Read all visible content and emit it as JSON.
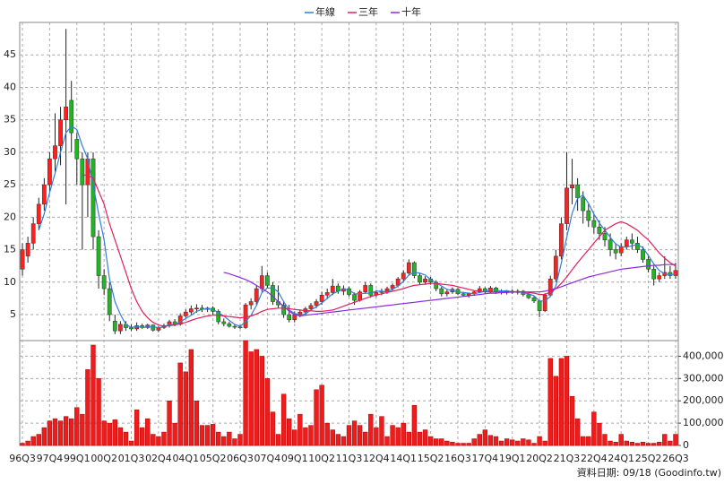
{
  "chart_data": [
    {
      "type": "candlestick",
      "legend": "top",
      "grid": true,
      "up_color": "#ff2020",
      "down_color": "#22b422",
      "ylim": [
        1,
        50
      ],
      "yticks": [
        5,
        10,
        15,
        20,
        25,
        30,
        35,
        40,
        45
      ],
      "categories": [
        "96Q3",
        null,
        null,
        null,
        null,
        "97Q4",
        null,
        null,
        null,
        null,
        "99Q1",
        null,
        null,
        null,
        null,
        "00Q2",
        null,
        null,
        null,
        null,
        "01Q3",
        null,
        null,
        null,
        null,
        "02Q4",
        null,
        null,
        null,
        null,
        "04Q1",
        null,
        null,
        null,
        null,
        "05Q2",
        null,
        null,
        null,
        null,
        "06Q3",
        null,
        null,
        null,
        null,
        "07Q4",
        null,
        null,
        null,
        null,
        "09Q1",
        null,
        null,
        null,
        null,
        "10Q2",
        null,
        null,
        null,
        null,
        "11Q3",
        null,
        null,
        null,
        null,
        "12Q4",
        null,
        null,
        null,
        null,
        "14Q1",
        null,
        null,
        null,
        null,
        "15Q2",
        null,
        null,
        null,
        null,
        "16Q3",
        null,
        null,
        null,
        null,
        "17Q4",
        null,
        null,
        null,
        null,
        "19Q1",
        null,
        null,
        null,
        null,
        "20Q2",
        null,
        null,
        null,
        null,
        "21Q3",
        null,
        null,
        null,
        null,
        "22Q4",
        null,
        null,
        null,
        null,
        "24Q1",
        null,
        null,
        null,
        null,
        "25Q2",
        null,
        null,
        null,
        null,
        "26Q3"
      ],
      "open": [
        12,
        14,
        16,
        19,
        22,
        25,
        29,
        31,
        35,
        38,
        32,
        29,
        25,
        29,
        17,
        11,
        9,
        4,
        2.5,
        3.5,
        3,
        2.8,
        3.3,
        3,
        3.4,
        2.6,
        3,
        3.3,
        3.9,
        3.5,
        4.8,
        5.4,
        5.9,
        6,
        5.8,
        6,
        5.5,
        3.9,
        3.6,
        3.2,
        3.1,
        3,
        6.5,
        7,
        9,
        11,
        9.5,
        7,
        6.5,
        5,
        4.2,
        5,
        5.4,
        5.9,
        6.4,
        7,
        8,
        8.4,
        9.4,
        8.6,
        9,
        8.1,
        7.2,
        8.5,
        9.5,
        8,
        8.4,
        8.6,
        9,
        9.5,
        10.5,
        11.4,
        13,
        11,
        10,
        10.5,
        10,
        9,
        8.2,
        8.5,
        8.9,
        8.2,
        8,
        8.2,
        8.5,
        9,
        8.5,
        9.1,
        8.5,
        8.4,
        8.6,
        8.4,
        8.6,
        8.1,
        7.6,
        7.1,
        5.6,
        8,
        10.5,
        14,
        19,
        24.5,
        25,
        23,
        21,
        19.5,
        18.5,
        17.5,
        16.5,
        15,
        14.5,
        15.5,
        16.5,
        16,
        15,
        13.5,
        12,
        10.5,
        11,
        11.5,
        11
      ],
      "high": [
        16,
        17,
        20,
        23,
        26,
        30,
        36,
        37,
        49,
        41,
        33,
        30,
        30,
        30,
        18,
        12,
        10,
        5,
        4,
        4,
        3.5,
        3.8,
        3.6,
        3.6,
        3.5,
        3.2,
        3.6,
        4.2,
        4.3,
        5.2,
        5.8,
        6.4,
        6.6,
        6.5,
        6.2,
        6.3,
        5.8,
        4.4,
        3.9,
        3.5,
        3.4,
        6.8,
        7.5,
        9.5,
        12.5,
        11.5,
        10,
        9.5,
        7,
        6.5,
        5.5,
        5.8,
        6.2,
        6.8,
        7.4,
        8.5,
        9,
        10.5,
        9.8,
        9.5,
        9.3,
        8.4,
        8.8,
        10,
        9.8,
        8.8,
        9,
        9.3,
        9.8,
        10.8,
        11.8,
        13.5,
        13.2,
        11.4,
        10.9,
        10.8,
        10.3,
        9.3,
        8.8,
        9.2,
        9.1,
        8.5,
        8.4,
        8.7,
        9.4,
        9.2,
        9.4,
        9.3,
        8.9,
        8.8,
        8.9,
        8.9,
        8.8,
        8.3,
        7.9,
        7.3,
        8.3,
        11,
        15,
        20,
        30,
        29,
        26,
        24,
        22,
        20.5,
        19.5,
        18.5,
        17.5,
        16,
        16,
        17,
        17.5,
        17,
        15.5,
        14,
        12.5,
        11.5,
        14,
        12.5,
        13
      ],
      "low": [
        11,
        13,
        15,
        18,
        21,
        24,
        27,
        28,
        22,
        30,
        25,
        15,
        20,
        15,
        9,
        8,
        4,
        2,
        2,
        2.5,
        2.5,
        2.5,
        2.8,
        2.8,
        2.4,
        2.3,
        2.8,
        3,
        3.2,
        3.3,
        4.5,
        5,
        5.3,
        5.4,
        5.4,
        5,
        3.5,
        3.2,
        3,
        2.8,
        2.8,
        2.8,
        5.8,
        6.5,
        8.5,
        9,
        6.5,
        6,
        4.5,
        3.8,
        3.8,
        4.6,
        5,
        5.5,
        6,
        6.5,
        7.4,
        8,
        8.2,
        8,
        7.8,
        6.5,
        7,
        8.2,
        7.6,
        7.7,
        8,
        8.2,
        8.7,
        9.2,
        10,
        11,
        10.6,
        9.6,
        9.6,
        9.6,
        8.6,
        7.8,
        7.8,
        8.2,
        8,
        7.8,
        7.6,
        7.9,
        8.3,
        8.2,
        8.3,
        8.2,
        8.1,
        8.1,
        8.2,
        8.1,
        7.8,
        7.4,
        6.8,
        4.6,
        5.4,
        7.8,
        10,
        13.5,
        18,
        22,
        21,
        19,
        18.5,
        17.5,
        16.5,
        15.5,
        14,
        13.5,
        14,
        15,
        15,
        14.5,
        13,
        11.5,
        9.5,
        10,
        10.5,
        10.5,
        10.5
      ],
      "close": [
        15,
        16,
        19,
        22,
        25,
        29,
        31,
        35,
        37,
        33,
        29,
        25,
        29,
        17,
        11,
        9,
        5,
        2.5,
        3.5,
        3,
        2.8,
        3.3,
        3,
        3.4,
        2.6,
        3,
        3.3,
        3.9,
        3.5,
        4.8,
        5.4,
        5.9,
        6,
        5.8,
        6,
        5.5,
        3.9,
        3.6,
        3.2,
        3.1,
        3,
        6.5,
        7,
        9,
        11,
        9.5,
        7,
        6.5,
        5,
        4.2,
        5,
        5.4,
        5.9,
        6.4,
        7,
        8,
        8.4,
        9.4,
        8.6,
        9,
        8.1,
        7.2,
        8.5,
        9.5,
        8,
        8.4,
        8.6,
        9,
        9.5,
        10.5,
        11.4,
        13,
        11,
        10,
        10.5,
        10,
        9,
        8.2,
        8.5,
        8.9,
        8.2,
        8,
        8.2,
        8.5,
        9,
        8.5,
        9.1,
        8.5,
        8.4,
        8.6,
        8.4,
        8.6,
        8.1,
        7.6,
        7.1,
        5.6,
        8,
        10.5,
        14,
        19,
        24.5,
        25,
        23,
        21,
        19.5,
        18.5,
        17.5,
        16.5,
        15,
        14.5,
        15.5,
        16.5,
        16,
        15,
        13.5,
        12,
        10.5,
        11,
        11.5,
        11,
        11.8
      ],
      "series": [
        {
          "name": "年線",
          "color": "#2f7fd8",
          "values": [
            null,
            null,
            null,
            18,
            20.5,
            23.8,
            26.8,
            30,
            33,
            34,
            33.5,
            31,
            29,
            25,
            20.5,
            16.5,
            10.5,
            7,
            5,
            3.5,
            3,
            3.2,
            3,
            3.1,
            3.1,
            3,
            3.1,
            3.5,
            3.4,
            3.9,
            4.4,
            4.9,
            5.5,
            5.8,
            5.9,
            5.8,
            5.3,
            4.8,
            4.1,
            3.5,
            3.2,
            3.9,
            4.9,
            6.4,
            8.4,
            9.1,
            9.1,
            8.5,
            7,
            5.7,
            5.2,
            4.9,
            5.1,
            5.7,
            6.2,
            6.8,
            7.5,
            8.2,
            8.6,
            8.9,
            8.8,
            8.2,
            8.2,
            8.3,
            8.3,
            8.6,
            8.6,
            8.5,
            8.9,
            9.4,
            10.1,
            11.1,
            11.5,
            11.4,
            11.1,
            10.4,
            9.9,
            9.4,
            8.9,
            8.7,
            8.5,
            8.4,
            8.3,
            8.2,
            8.4,
            8.6,
            8.8,
            8.8,
            8.6,
            8.7,
            8.5,
            8.5,
            8.4,
            8.2,
            7.9,
            7.1,
            7.1,
            7.8,
            9.4,
            12.9,
            16.9,
            20.6,
            22.9,
            23.4,
            22.1,
            20.5,
            19.1,
            18,
            16.9,
            15.9,
            15.4,
            15.4,
            15.6,
            15.8,
            15.3,
            14.1,
            12.8,
            11.8,
            11.3,
            11.1,
            11.3
          ]
        },
        {
          "name": "三年",
          "color": "#e0205a",
          "values": [
            null,
            null,
            null,
            null,
            null,
            null,
            null,
            null,
            null,
            null,
            null,
            26.5,
            26.5,
            26,
            24,
            22,
            19,
            16.5,
            14,
            11.5,
            9,
            7,
            5.5,
            4.5,
            3.8,
            3.4,
            3.2,
            3.3,
            3.4,
            3.6,
            3.8,
            4.1,
            4.4,
            4.6,
            4.8,
            4.9,
            4.9,
            4.8,
            4.7,
            4.6,
            4.5,
            4.6,
            4.8,
            5.1,
            5.5,
            5.8,
            5.9,
            6,
            6,
            5.9,
            5.8,
            5.7,
            5.6,
            5.6,
            5.5,
            5.5,
            5.6,
            5.7,
            6,
            6.3,
            6.6,
            6.9,
            7.2,
            7.5,
            7.8,
            8,
            8.2,
            8.4,
            8.6,
            8.8,
            9,
            9.3,
            9.5,
            9.6,
            9.7,
            9.8,
            9.8,
            9.7,
            9.6,
            9.5,
            9.3,
            9.1,
            8.9,
            8.7,
            8.6,
            8.5,
            8.5,
            8.5,
            8.5,
            8.5,
            8.5,
            8.5,
            8.5,
            8.4,
            8.3,
            8.1,
            8.1,
            8.5,
            9,
            9.8,
            10.8,
            11.9,
            13,
            14,
            15,
            16,
            17,
            18,
            18.5,
            19,
            19.3,
            19,
            18.5,
            18,
            17.2,
            16.5,
            15.5,
            14.5,
            13.7,
            13,
            12.5
          ]
        },
        {
          "name": "十年",
          "color": "#8a2be2",
          "values": [
            null,
            null,
            null,
            null,
            null,
            null,
            null,
            null,
            null,
            null,
            null,
            null,
            null,
            null,
            null,
            null,
            null,
            null,
            null,
            null,
            null,
            null,
            null,
            null,
            null,
            null,
            null,
            null,
            null,
            null,
            null,
            null,
            null,
            null,
            null,
            null,
            null,
            11.5,
            11.3,
            11,
            10.7,
            10.4,
            10,
            9.5,
            9,
            8.5,
            7.8,
            7,
            6.3,
            5.5,
            5,
            4.8,
            4.9,
            5,
            5.1,
            5.2,
            5.3,
            5.4,
            5.5,
            5.6,
            5.7,
            5.8,
            5.9,
            6,
            6.1,
            6.2,
            6.3,
            6.4,
            6.5,
            6.6,
            6.7,
            6.8,
            6.9,
            7,
            7.1,
            7.2,
            7.3,
            7.4,
            7.5,
            7.6,
            7.7,
            7.8,
            7.9,
            8,
            8.1,
            8.2,
            8.3,
            8.3,
            8.4,
            8.4,
            8.5,
            8.5,
            8.5,
            8.5,
            8.5,
            8.5,
            8.6,
            8.8,
            9,
            9.3,
            9.6,
            9.9,
            10.2,
            10.5,
            10.8,
            11,
            11.2,
            11.4,
            11.6,
            11.8,
            12,
            12.1,
            12.2,
            12.3,
            12.4,
            12.5,
            12.6,
            12.6,
            12.7,
            12.7,
            12.7
          ]
        }
      ]
    },
    {
      "type": "bar",
      "color": "#ee1c1c",
      "grid": true,
      "ylim": [
        0,
        470000
      ],
      "yticks": [
        0,
        {
          "value": 100000,
          "label": "100,000"
        },
        {
          "value": 200000,
          "label": "200,000"
        },
        {
          "value": 300000,
          "label": "300,000"
        },
        {
          "value": 400000,
          "label": "400,000"
        }
      ],
      "values": [
        10000,
        20000,
        40000,
        50000,
        80000,
        110000,
        120000,
        110000,
        130000,
        120000,
        170000,
        140000,
        340000,
        450000,
        300000,
        110000,
        100000,
        115000,
        80000,
        60000,
        20000,
        160000,
        80000,
        120000,
        50000,
        40000,
        60000,
        200000,
        100000,
        370000,
        330000,
        430000,
        200000,
        90000,
        90000,
        95000,
        60000,
        40000,
        60000,
        30000,
        50000,
        470000,
        420000,
        430000,
        400000,
        300000,
        150000,
        50000,
        230000,
        120000,
        70000,
        140000,
        80000,
        90000,
        250000,
        270000,
        100000,
        70000,
        50000,
        40000,
        90000,
        110000,
        90000,
        60000,
        140000,
        80000,
        130000,
        40000,
        90000,
        80000,
        100000,
        60000,
        180000,
        60000,
        70000,
        40000,
        30000,
        30000,
        20000,
        15000,
        10000,
        10000,
        10000,
        30000,
        50000,
        70000,
        45000,
        40000,
        20000,
        30000,
        25000,
        20000,
        30000,
        25000,
        10000,
        40000,
        20000,
        390000,
        310000,
        390000,
        400000,
        220000,
        120000,
        40000,
        40000,
        150000,
        100000,
        50000,
        20000,
        15000,
        50000,
        20000,
        15000,
        10000,
        15000,
        10000,
        10000,
        15000,
        50000,
        20000,
        50000
      ]
    }
  ],
  "footnote": "資料日期: 09/18 (Goodinfo.tw)"
}
